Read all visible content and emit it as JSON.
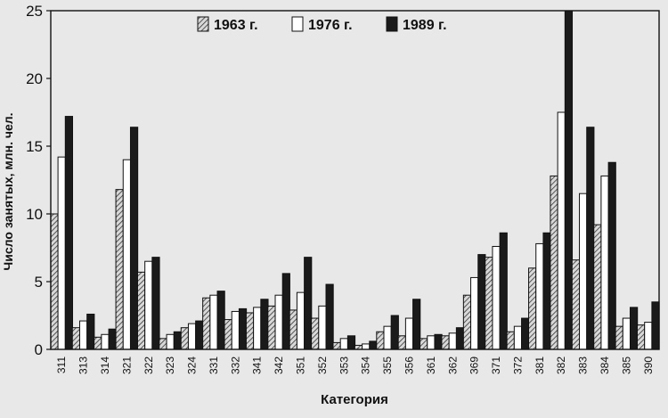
{
  "chart_data": {
    "type": "bar",
    "xlabel": "Категория",
    "ylabel": "Число занятых, млн. чел.",
    "ylim": [
      0,
      25
    ],
    "yticks": [
      0,
      5,
      10,
      15,
      20,
      25
    ],
    "grid": false,
    "legend_position": "top",
    "categories": [
      "311",
      "313",
      "314",
      "321",
      "322",
      "323",
      "324",
      "331",
      "332",
      "341",
      "342",
      "351",
      "352",
      "353",
      "354",
      "355",
      "356",
      "361",
      "362",
      "369",
      "371",
      "372",
      "381",
      "382",
      "383",
      "384",
      "385",
      "390"
    ],
    "series": [
      {
        "name": "1963 г.",
        "pattern": "hatched",
        "color": "#8a8a8a",
        "values": [
          10.0,
          1.6,
          0.9,
          11.8,
          5.7,
          0.8,
          1.6,
          3.8,
          2.2,
          2.7,
          3.2,
          2.9,
          2.3,
          0.5,
          0.3,
          1.3,
          1.0,
          0.8,
          1.0,
          4.0,
          6.8,
          1.3,
          6.0,
          12.8,
          6.6,
          9.2,
          1.7,
          1.8
        ]
      },
      {
        "name": "1976 г.",
        "pattern": "white",
        "color": "#ffffff",
        "values": [
          14.2,
          2.1,
          1.1,
          14.0,
          6.5,
          1.1,
          1.9,
          4.0,
          2.8,
          3.1,
          4.0,
          4.2,
          3.2,
          0.8,
          0.4,
          1.7,
          2.3,
          1.0,
          1.2,
          5.3,
          7.6,
          1.7,
          7.8,
          17.5,
          11.5,
          12.8,
          2.3,
          2.0
        ]
      },
      {
        "name": "1989 г.",
        "pattern": "black",
        "color": "#1a1a1a",
        "values": [
          17.2,
          2.6,
          1.5,
          16.4,
          6.8,
          1.3,
          2.1,
          4.3,
          3.0,
          3.7,
          5.6,
          6.8,
          4.8,
          1.0,
          0.6,
          2.5,
          3.7,
          1.1,
          1.6,
          7.0,
          8.6,
          2.3,
          8.6,
          25.0,
          16.4,
          13.8,
          3.1,
          3.5
        ]
      }
    ]
  }
}
